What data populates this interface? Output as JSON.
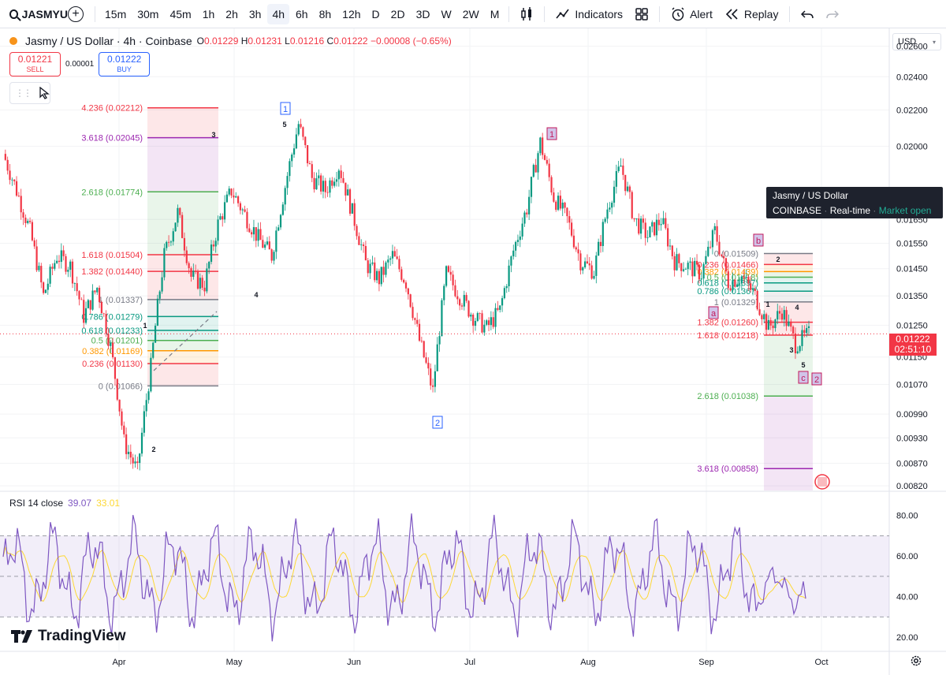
{
  "toolbar": {
    "symbol": "JASMYU",
    "intervals": [
      "15m",
      "30m",
      "45m",
      "1h",
      "2h",
      "3h",
      "4h",
      "6h",
      "8h",
      "12h",
      "D",
      "2D",
      "3D",
      "W",
      "2W",
      "M"
    ],
    "active_interval": "4h",
    "indicators_label": "Indicators",
    "alert_label": "Alert",
    "replay_label": "Replay"
  },
  "legend": {
    "title": "Jasmy / US Dollar · 4h · Coinbase",
    "o_label": "O",
    "o": "0.01229",
    "h_label": "H",
    "h": "0.01231",
    "l_label": "L",
    "l": "0.01216",
    "c_label": "C",
    "c": "0.01222",
    "change": "−0.00008 (−0.65%)"
  },
  "trade": {
    "sell_price": "0.01221",
    "sell_label": "SELL",
    "spread": "0.00001",
    "buy_price": "0.01222",
    "buy_label": "BUY"
  },
  "tooltip": {
    "title": "Jasmy / US Dollar",
    "exchange": "COINBASE",
    "feed": "Real-time",
    "status": "Market open"
  },
  "price_axis": {
    "currency": "USD",
    "ticks": [
      "0.02600",
      "0.02400",
      "0.02200",
      "0.02000",
      "0.01650",
      "0.01550",
      "0.01450",
      "0.01350",
      "0.01250",
      "0.01150",
      "0.01070",
      "0.00990",
      "0.00930",
      "0.00870",
      "0.00820"
    ],
    "current_price": "0.01222",
    "countdown": "02:51:10"
  },
  "time_axis": [
    "Apr",
    "May",
    "Jun",
    "Jul",
    "Aug",
    "Sep",
    "Oct"
  ],
  "rsi": {
    "label": "RSI 14 close",
    "value": "39.07",
    "ma_value": "33.01",
    "ticks": [
      "80.00",
      "60.00",
      "40.00",
      "20.00"
    ]
  },
  "fib_left": [
    {
      "label": "4.236 (0.02212)",
      "color": "#f23645"
    },
    {
      "label": "3.618 (0.02045)",
      "color": "#9c27b0"
    },
    {
      "label": "2.618 (0.01774)",
      "color": "#4caf50"
    },
    {
      "label": "1.618 (0.01504)",
      "color": "#f23645"
    },
    {
      "label": "1.382 (0.01440)",
      "color": "#f23645"
    },
    {
      "label": "1 (0.01337)",
      "color": "#787b86"
    },
    {
      "label": "0.786 (0.01279)",
      "color": "#089981"
    },
    {
      "label": "0.618 (0.01233)",
      "color": "#089981"
    },
    {
      "label": "0.5 (0.01201)",
      "color": "#4caf50"
    },
    {
      "label": "0.382 (0.01169)",
      "color": "#ff9800"
    },
    {
      "label": "0.236 (0.01130)",
      "color": "#f23645"
    },
    {
      "label": "0 (0.01066)",
      "color": "#787b86"
    }
  ],
  "fib_right": [
    {
      "label": "0 (0.01509)",
      "color": "#787b86"
    },
    {
      "label": "0.236 (0.01466)",
      "color": "#f23645"
    },
    {
      "label": "0.382 (0.01439)",
      "color": "#ff9800"
    },
    {
      "label": "0.5 (0.01418)",
      "color": "#4caf50"
    },
    {
      "label": "0.618 (0.01397)",
      "color": "#089981"
    },
    {
      "label": "0.786 (0.01367)",
      "color": "#089981"
    },
    {
      "label": "1 (0.01329)",
      "color": "#787b86"
    },
    {
      "label": "1.382 (0.01260)",
      "color": "#f23645"
    },
    {
      "label": "1.618 (0.01218)",
      "color": "#f23645"
    },
    {
      "label": "2.618 (0.01038)",
      "color": "#4caf50"
    },
    {
      "label": "3.618 (0.00858)",
      "color": "#9c27b0"
    }
  ],
  "wave_labels": [
    {
      "text": "1",
      "boxed": true,
      "color": "#2962ff"
    },
    {
      "text": "5",
      "boxed": false
    },
    {
      "text": "3",
      "boxed": false
    },
    {
      "text": "4",
      "boxed": false
    },
    {
      "text": "1",
      "boxed": false
    },
    {
      "text": "2",
      "boxed": false
    },
    {
      "text": "2",
      "boxed": true,
      "color": "#2962ff"
    },
    {
      "text": "1",
      "boxed": true,
      "color": "#c2185b"
    },
    {
      "text": "b",
      "boxed": true,
      "color": "#c2185b"
    },
    {
      "text": "a",
      "boxed": true,
      "color": "#c2185b"
    },
    {
      "text": "2",
      "boxed": false
    },
    {
      "text": "1",
      "boxed": false
    },
    {
      "text": "4",
      "boxed": false
    },
    {
      "text": "3",
      "boxed": false
    },
    {
      "text": "5",
      "boxed": false
    },
    {
      "text": "c",
      "boxed": true,
      "color": "#c2185b"
    },
    {
      "text": "2",
      "boxed": true,
      "color": "#c2185b"
    }
  ],
  "branding": "TradingView",
  "chart_data": {
    "type": "candlestick",
    "title": "Jasmy / US Dollar · 4h · Coinbase",
    "x_range": [
      "Mar",
      "Sep"
    ],
    "y_scale": "log",
    "ylim": [
      0.0081,
      0.0268
    ],
    "close_path": [
      [
        "Mar",
        0.0196
      ],
      [
        "Mar",
        0.0178
      ],
      [
        "Mar",
        0.016
      ],
      [
        "Mar",
        0.0135
      ],
      [
        "Mar",
        0.015
      ],
      [
        "Mar",
        0.0146
      ],
      [
        "Mar",
        0.0128
      ],
      [
        "Mar",
        0.0138
      ],
      [
        "Mar",
        0.0118
      ],
      [
        "Apr",
        0.0092
      ],
      [
        "Apr",
        0.0085
      ],
      [
        "Apr",
        0.0112
      ],
      [
        "Apr",
        0.015
      ],
      [
        "Apr",
        0.0168
      ],
      [
        "Apr",
        0.0142
      ],
      [
        "Apr",
        0.0139
      ],
      [
        "Apr",
        0.0163
      ],
      [
        "Apr",
        0.0178
      ],
      [
        "May",
        0.0167
      ],
      [
        "May",
        0.0157
      ],
      [
        "May",
        0.015
      ],
      [
        "May",
        0.018
      ],
      [
        "May",
        0.0212
      ],
      [
        "May",
        0.0184
      ],
      [
        "May",
        0.0178
      ],
      [
        "May",
        0.019
      ],
      [
        "May",
        0.0168
      ],
      [
        "Jun",
        0.0147
      ],
      [
        "Jun",
        0.0141
      ],
      [
        "Jun",
        0.015
      ],
      [
        "Jun",
        0.014
      ],
      [
        "Jun",
        0.012
      ],
      [
        "Jun",
        0.0105
      ],
      [
        "Jun",
        0.0143
      ],
      [
        "Jun",
        0.0135
      ],
      [
        "Jun",
        0.0128
      ],
      [
        "Jul",
        0.0124
      ],
      [
        "Jul",
        0.013
      ],
      [
        "Jul",
        0.0152
      ],
      [
        "Jul",
        0.017
      ],
      [
        "Jul",
        0.0202
      ],
      [
        "Jul",
        0.0175
      ],
      [
        "Jul",
        0.0165
      ],
      [
        "Aug",
        0.0148
      ],
      [
        "Aug",
        0.0144
      ],
      [
        "Aug",
        0.017
      ],
      [
        "Aug",
        0.019
      ],
      [
        "Aug",
        0.0165
      ],
      [
        "Aug",
        0.0158
      ],
      [
        "Aug",
        0.0165
      ],
      [
        "Sep",
        0.0148
      ],
      [
        "Sep",
        0.0146
      ],
      [
        "Sep",
        0.0143
      ],
      [
        "Sep",
        0.016
      ],
      [
        "Sep",
        0.014
      ],
      [
        "Sep",
        0.0142
      ],
      [
        "Sep",
        0.0135
      ],
      [
        "Sep",
        0.0124
      ],
      [
        "Sep",
        0.013
      ],
      [
        "Sep",
        0.0119
      ],
      [
        "Sep",
        0.0122
      ]
    ],
    "rsi_series_note": "RSI 14 oscillating between ~20 and ~85, last 39.07, MA 33.01",
    "rsi_range": [
      15,
      90
    ],
    "rsi_bands": [
      30,
      70
    ]
  }
}
